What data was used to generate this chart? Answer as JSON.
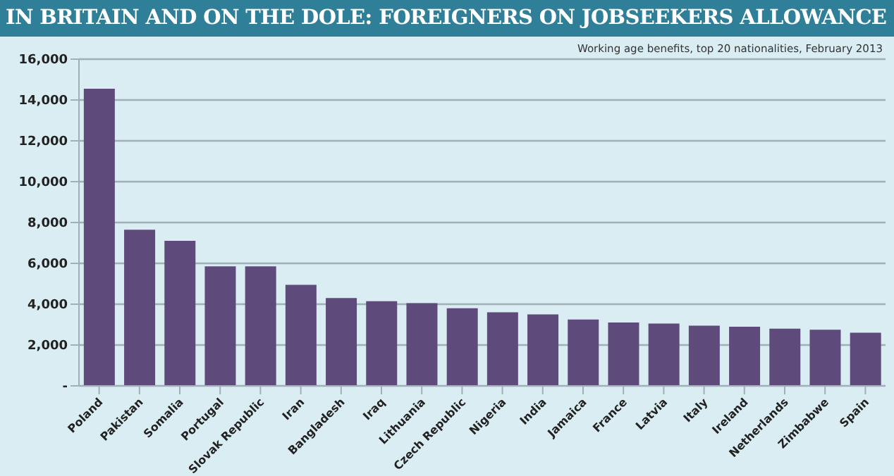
{
  "chart_data": {
    "type": "bar",
    "title": "IN BRITAIN AND ON THE DOLE: FOREIGNERS ON JOBSEEKERS ALLOWANCE",
    "subtitle": "Working  age benefits, top 20 nationalities, February 2013",
    "categories": [
      "Poland",
      "Pakistan",
      "Somalia",
      "Portugal",
      "Slovak Republic",
      "Iran",
      "Bangladesh",
      "Iraq",
      "Lithuania",
      "Czech Republic",
      "Nigeria",
      "India",
      "Jamaica",
      "France",
      "Latvia",
      "Italy",
      "Ireland",
      "Netherlands",
      "Zimbabwe",
      "Spain"
    ],
    "values": [
      14550,
      7650,
      7100,
      5850,
      5850,
      4950,
      4300,
      4150,
      4050,
      3800,
      3600,
      3500,
      3250,
      3100,
      3050,
      2950,
      2900,
      2800,
      2750,
      2600
    ],
    "color": "#5f4a7c",
    "ylim": [
      0,
      16000
    ],
    "yticks": [
      {
        "value": 0,
        "label": "-"
      },
      {
        "value": 2000,
        "label": "2,000"
      },
      {
        "value": 4000,
        "label": "4,000"
      },
      {
        "value": 6000,
        "label": "6,000"
      },
      {
        "value": 8000,
        "label": "8,000"
      },
      {
        "value": 10000,
        "label": "10,000"
      },
      {
        "value": 12000,
        "label": "12,000"
      },
      {
        "value": 14000,
        "label": "14,000"
      },
      {
        "value": 16000,
        "label": "16,000"
      }
    ],
    "grid": "y"
  }
}
